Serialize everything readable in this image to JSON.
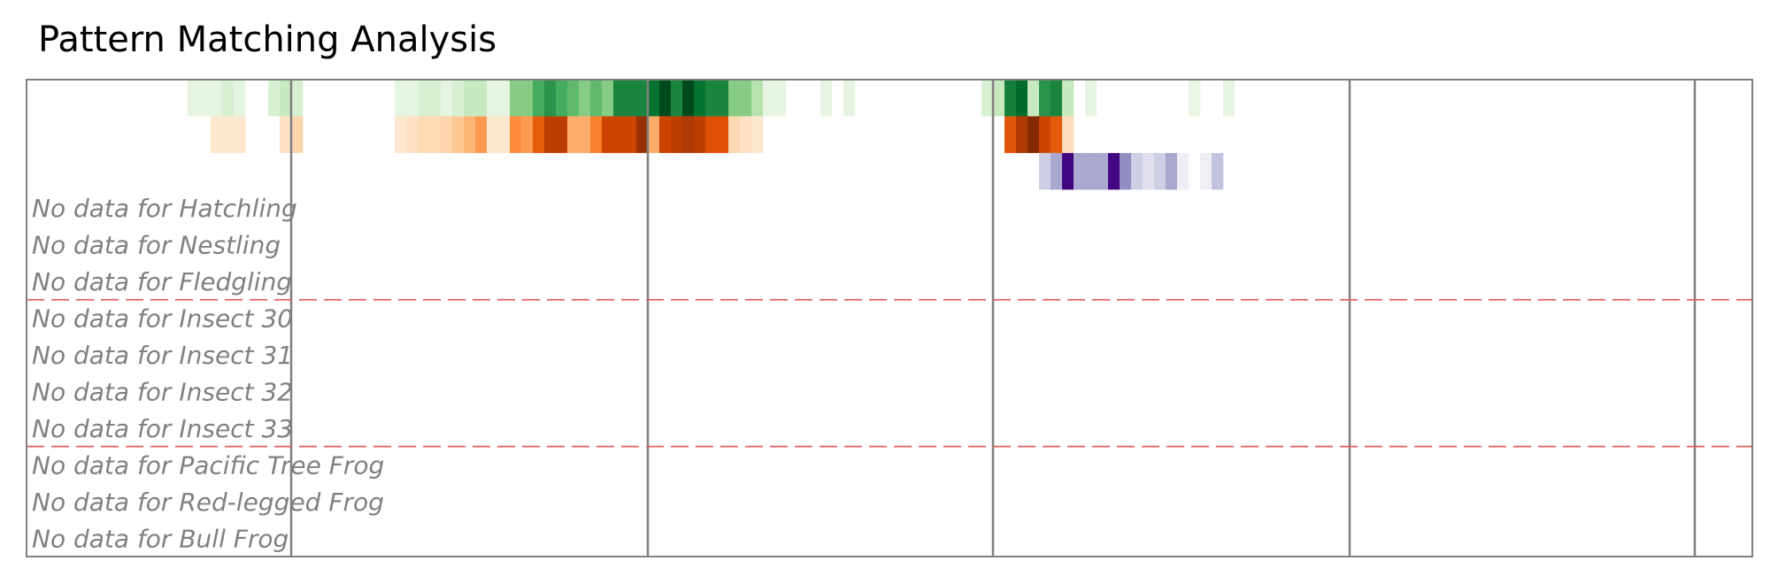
{
  "chart_data": {
    "type": "heatmap",
    "title": "Pattern Matching Analysis",
    "rows": [
      {
        "name": "",
        "colormap": "Greens",
        "cells": [
          [
            14,
            0.12
          ],
          [
            15,
            0.12
          ],
          [
            16,
            0.12
          ],
          [
            17,
            0.18
          ],
          [
            18,
            0.12
          ],
          [
            21,
            0.18
          ],
          [
            22,
            0.25
          ],
          [
            23,
            0.18
          ],
          [
            32,
            0.12
          ],
          [
            33,
            0.12
          ],
          [
            34,
            0.18
          ],
          [
            35,
            0.18
          ],
          [
            36,
            0.12
          ],
          [
            37,
            0.18
          ],
          [
            38,
            0.25
          ],
          [
            39,
            0.25
          ],
          [
            40,
            0.12
          ],
          [
            41,
            0.12
          ],
          [
            42,
            0.45
          ],
          [
            43,
            0.45
          ],
          [
            44,
            0.62
          ],
          [
            45,
            0.72
          ],
          [
            46,
            0.62
          ],
          [
            47,
            0.55
          ],
          [
            48,
            0.45
          ],
          [
            49,
            0.55
          ],
          [
            50,
            0.45
          ],
          [
            51,
            0.78
          ],
          [
            52,
            0.78
          ],
          [
            53,
            0.78
          ],
          [
            54,
            0.85
          ],
          [
            55,
            0.98
          ],
          [
            56,
            0.78
          ],
          [
            57,
            0.98
          ],
          [
            58,
            0.85
          ],
          [
            59,
            0.78
          ],
          [
            60,
            0.78
          ],
          [
            61,
            0.45
          ],
          [
            62,
            0.45
          ],
          [
            63,
            0.3
          ],
          [
            64,
            0.12
          ],
          [
            65,
            0.12
          ],
          [
            69,
            0.12
          ],
          [
            71,
            0.12
          ],
          [
            83,
            0.18
          ],
          [
            84,
            0.25
          ],
          [
            85,
            0.8
          ],
          [
            86,
            0.88
          ],
          [
            87,
            0.25
          ],
          [
            88,
            0.72
          ],
          [
            89,
            0.78
          ],
          [
            90,
            0.25
          ],
          [
            92,
            0.12
          ],
          [
            101,
            0.1
          ],
          [
            104,
            0.12
          ]
        ]
      },
      {
        "name": "",
        "colormap": "Oranges",
        "cells": [
          [
            16,
            0.12
          ],
          [
            17,
            0.12
          ],
          [
            18,
            0.12
          ],
          [
            22,
            0.15
          ],
          [
            23,
            0.22
          ],
          [
            32,
            0.12
          ],
          [
            33,
            0.15
          ],
          [
            34,
            0.2
          ],
          [
            35,
            0.2
          ],
          [
            36,
            0.22
          ],
          [
            37,
            0.28
          ],
          [
            38,
            0.35
          ],
          [
            39,
            0.45
          ],
          [
            40,
            0.12
          ],
          [
            41,
            0.12
          ],
          [
            42,
            0.5
          ],
          [
            43,
            0.45
          ],
          [
            44,
            0.68
          ],
          [
            45,
            0.82
          ],
          [
            46,
            0.82
          ],
          [
            47,
            0.38
          ],
          [
            48,
            0.38
          ],
          [
            49,
            0.55
          ],
          [
            50,
            0.78
          ],
          [
            51,
            0.78
          ],
          [
            52,
            0.78
          ],
          [
            53,
            0.92
          ],
          [
            54,
            0.38
          ],
          [
            55,
            0.78
          ],
          [
            56,
            0.82
          ],
          [
            57,
            0.85
          ],
          [
            58,
            0.82
          ],
          [
            59,
            0.72
          ],
          [
            60,
            0.72
          ],
          [
            61,
            0.2
          ],
          [
            62,
            0.15
          ],
          [
            63,
            0.12
          ],
          [
            85,
            0.7
          ],
          [
            86,
            0.85
          ],
          [
            87,
            0.98
          ],
          [
            88,
            0.78
          ],
          [
            89,
            0.68
          ],
          [
            90,
            0.18
          ]
        ]
      },
      {
        "name": "",
        "colormap": "Purples",
        "cells": [
          [
            88,
            0.3
          ],
          [
            89,
            0.45
          ],
          [
            90,
            0.98
          ],
          [
            91,
            0.45
          ],
          [
            92,
            0.45
          ],
          [
            93,
            0.45
          ],
          [
            94,
            0.98
          ],
          [
            95,
            0.55
          ],
          [
            96,
            0.3
          ],
          [
            97,
            0.22
          ],
          [
            98,
            0.3
          ],
          [
            99,
            0.45
          ],
          [
            100,
            0.12
          ],
          [
            102,
            0.12
          ],
          [
            103,
            0.35
          ]
        ]
      },
      {
        "name": "Hatchling",
        "empty_label": "No data for Hatchling"
      },
      {
        "name": "Nestling",
        "empty_label": "No data for Nestling"
      },
      {
        "name": "Fledgling",
        "empty_label": "No data for Fledgling"
      },
      {
        "name": "Insect 30",
        "empty_label": "No data for Insect 30"
      },
      {
        "name": "Insect 31",
        "empty_label": "No data for Insect 31"
      },
      {
        "name": "Insect 32",
        "empty_label": "No data for Insect 32"
      },
      {
        "name": "Insect 33",
        "empty_label": "No data for Insect 33"
      },
      {
        "name": "Pacific Tree Frog",
        "empty_label": "No data for Pacific Tree Frog"
      },
      {
        "name": "Red-legged Frog",
        "empty_label": "No data for Red-legged Frog"
      },
      {
        "name": "Bull Frog",
        "empty_label": "No data for Bull Frog"
      }
    ],
    "n_columns": 150,
    "group_separators_after_row": [
      5,
      9
    ],
    "separator_color": "#e06060",
    "vertical_gridlines_at_column": [
      23,
      54,
      84,
      115,
      145
    ],
    "xlabel": "",
    "ylabel": ""
  }
}
